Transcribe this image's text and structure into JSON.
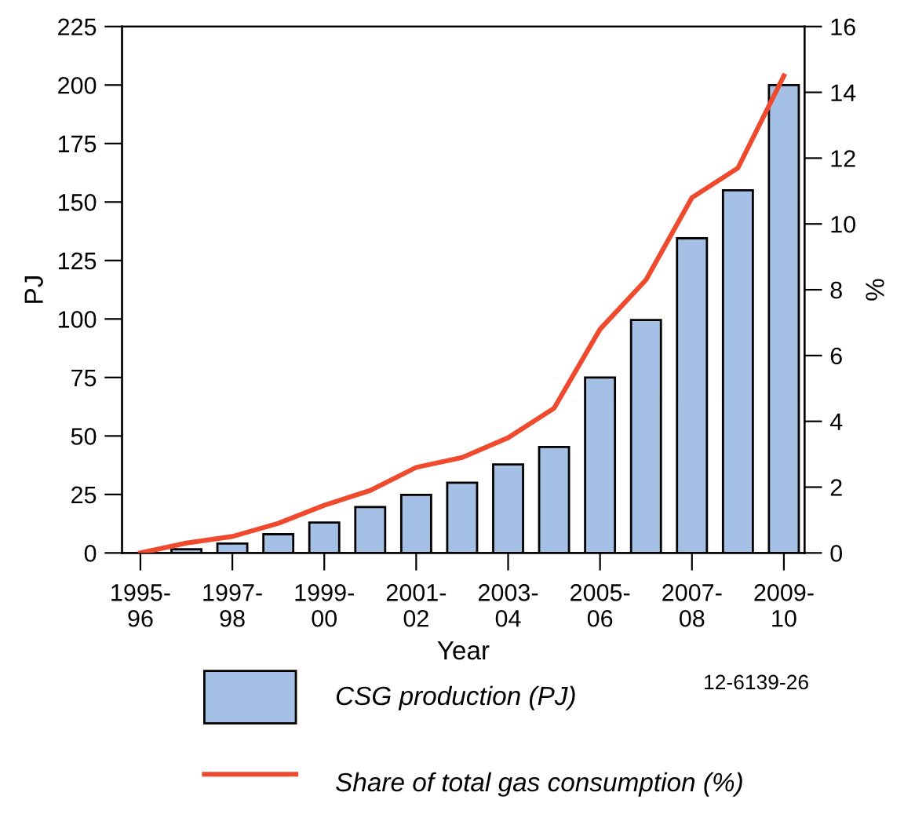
{
  "chart_data": {
    "type": "bar",
    "xlabel": "Year",
    "ylabel": "PJ",
    "y2label": "%",
    "categories": [
      "1995-\n96",
      null,
      "1997-\n98",
      null,
      "1999-\n00",
      null,
      "2001-\n02",
      null,
      "2003-\n04",
      null,
      "2005-\n06",
      null,
      "2007-\n08",
      null,
      "2009-\n10"
    ],
    "series": [
      {
        "name": "CSG production (PJ)",
        "color": "#a4c0e4",
        "values": [
          null,
          1.6,
          4,
          8,
          13,
          19.6,
          24.8,
          30,
          37.8,
          45.3,
          75,
          99.6,
          134.5,
          155,
          200
        ]
      },
      {
        "name": "Share of total gas consumption (%)",
        "type": "line",
        "axis": "y2",
        "color": "#f04a2e",
        "values": [
          0,
          0.3,
          0.5,
          0.9,
          1.45,
          1.9,
          2.6,
          2.9,
          3.5,
          4.4,
          6.8,
          8.3,
          10.8,
          11.7,
          14.5
        ]
      }
    ],
    "ylim": [
      0,
      225
    ],
    "yticks": [
      0,
      25,
      50,
      75,
      100,
      125,
      150,
      175,
      200,
      225
    ],
    "y2lim": [
      0,
      16
    ],
    "y2ticks": [
      0,
      2,
      4,
      6,
      8,
      10,
      12,
      14,
      16
    ],
    "annotations": [
      "12-6139-26"
    ],
    "legend": "bottom",
    "grid": false,
    "marker": "none",
    "line_style": "solid"
  }
}
